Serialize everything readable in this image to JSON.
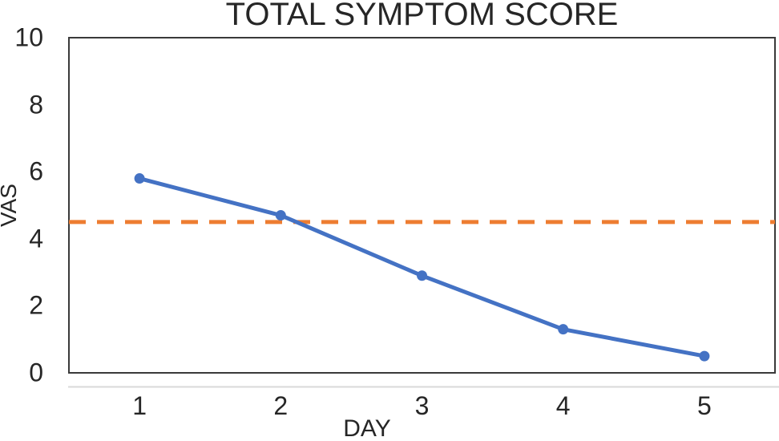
{
  "chart_data": {
    "type": "line",
    "title": "TOTAL SYMPTOM SCORE",
    "xlabel": "DAY",
    "ylabel": "VAS",
    "categories": [
      "1",
      "2",
      "3",
      "4",
      "5"
    ],
    "series": [
      {
        "name": "total-symptom-score",
        "values": [
          5.8,
          4.7,
          2.9,
          1.3,
          0.5
        ],
        "color": "#4472C4",
        "line_style": "solid",
        "markers": true
      }
    ],
    "reference_line": {
      "y": 4.5,
      "color": "#ED7D31",
      "line_style": "dashed"
    },
    "ylim": [
      0,
      10
    ],
    "yticks": [
      0,
      2,
      4,
      6,
      8,
      10
    ],
    "grid": false,
    "legend": "none"
  },
  "colors": {
    "plot_border": "#3a3a3a",
    "axis_underline": "#d9d9d9",
    "text": "#262626",
    "series_blue": "#4472C4",
    "reference_orange": "#ED7D31"
  }
}
